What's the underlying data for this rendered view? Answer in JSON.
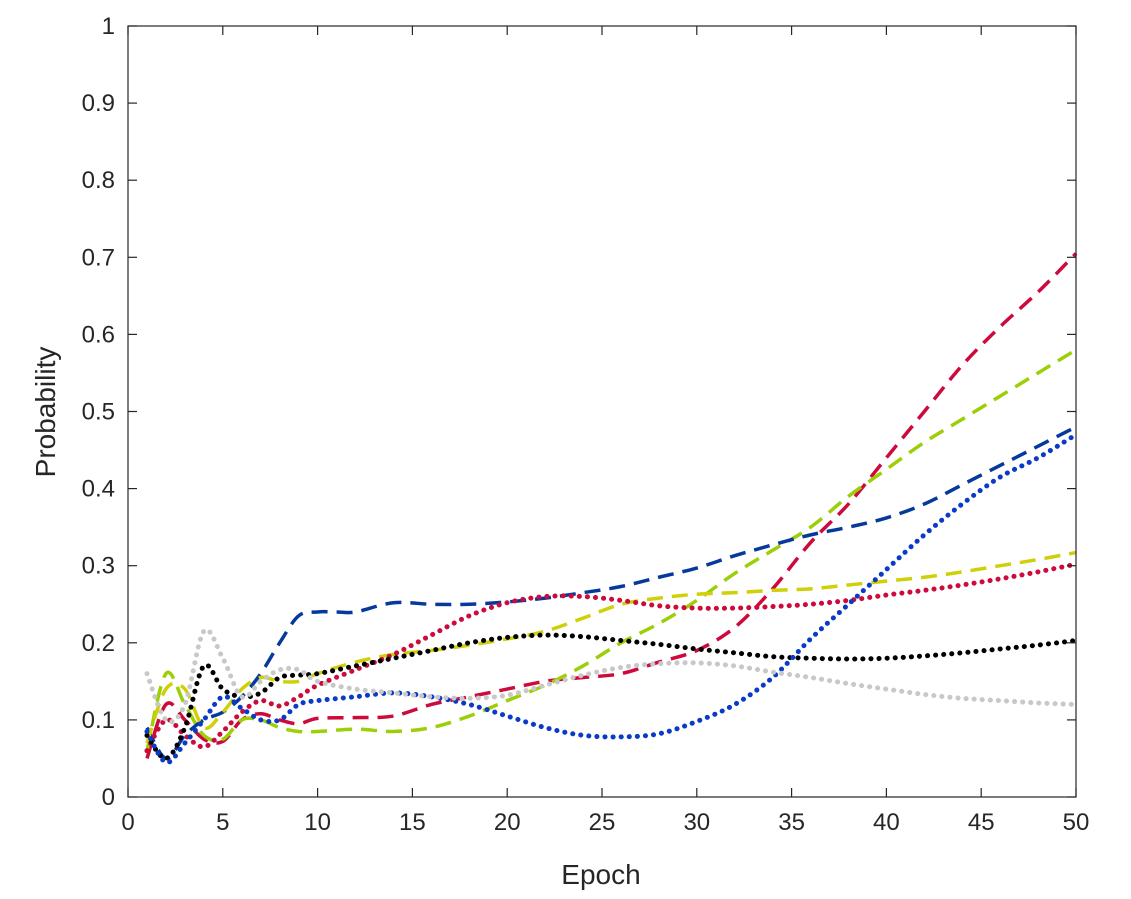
{
  "chart_data": {
    "type": "line",
    "title": "",
    "xlabel": "Epoch",
    "ylabel": "Probability",
    "xlim": [
      0,
      50
    ],
    "ylim": [
      0,
      1
    ],
    "xticks": [
      0,
      5,
      10,
      15,
      20,
      25,
      30,
      35,
      40,
      45,
      50
    ],
    "yticks": [
      0,
      0.1,
      0.2,
      0.3,
      0.4,
      0.5,
      0.6,
      0.7,
      0.8,
      0.9,
      1
    ],
    "ytick_labels": [
      "0",
      "0.1",
      "0.2",
      "0.3",
      "0.4",
      "0.5",
      "0.6",
      "0.7",
      "0.8",
      "0.9",
      "1"
    ],
    "grid": false,
    "legend": "none",
    "series": [
      {
        "name": "crimson-dashed",
        "color": "#cc0a3c",
        "style": "dashed",
        "x": [
          1,
          2,
          3,
          4,
          5,
          6,
          7,
          8,
          9,
          10,
          12,
          14,
          16,
          18,
          20,
          22,
          24,
          26,
          28,
          30,
          32,
          34,
          36,
          38,
          40,
          42,
          44,
          46,
          48,
          50
        ],
        "y": [
          0.05,
          0.12,
          0.1,
          0.075,
          0.072,
          0.1,
          0.108,
          0.1,
          0.095,
          0.102,
          0.103,
          0.105,
          0.12,
          0.13,
          0.14,
          0.15,
          0.155,
          0.16,
          0.175,
          0.19,
          0.22,
          0.27,
          0.33,
          0.38,
          0.44,
          0.5,
          0.56,
          0.61,
          0.655,
          0.705
        ]
      },
      {
        "name": "lime-dashed",
        "color": "#9ccf07",
        "style": "dashed",
        "x": [
          1,
          2,
          3,
          4,
          5,
          6,
          7,
          8,
          9,
          10,
          12,
          14,
          16,
          18,
          20,
          22,
          24,
          26,
          28,
          30,
          32,
          34,
          36,
          38,
          40,
          42,
          44,
          46,
          48,
          50
        ],
        "y": [
          0.06,
          0.16,
          0.12,
          0.08,
          0.075,
          0.1,
          0.1,
          0.09,
          0.085,
          0.085,
          0.088,
          0.085,
          0.09,
          0.105,
          0.125,
          0.145,
          0.17,
          0.2,
          0.225,
          0.255,
          0.29,
          0.32,
          0.35,
          0.39,
          0.425,
          0.46,
          0.49,
          0.52,
          0.55,
          0.58
        ]
      },
      {
        "name": "navy-dashed",
        "color": "#05399c",
        "style": "dashed",
        "x": [
          1,
          2,
          3,
          4,
          5,
          6,
          7,
          8,
          9,
          10,
          11,
          12,
          14,
          16,
          18,
          20,
          22,
          24,
          26,
          28,
          30,
          32,
          34,
          36,
          38,
          40,
          42,
          44,
          46,
          48,
          50
        ],
        "y": [
          0.09,
          0.05,
          0.08,
          0.1,
          0.11,
          0.13,
          0.16,
          0.2,
          0.235,
          0.24,
          0.24,
          0.24,
          0.252,
          0.25,
          0.25,
          0.253,
          0.258,
          0.265,
          0.273,
          0.285,
          0.297,
          0.313,
          0.327,
          0.34,
          0.35,
          0.362,
          0.38,
          0.405,
          0.43,
          0.455,
          0.48
        ]
      },
      {
        "name": "yellow-dashed",
        "color": "#cfd007",
        "style": "dashed",
        "x": [
          1,
          2,
          3,
          4,
          5,
          6,
          7,
          8,
          9,
          10,
          12,
          14,
          16,
          18,
          20,
          22,
          24,
          26,
          28,
          30,
          32,
          34,
          36,
          38,
          40,
          42,
          44,
          46,
          48,
          50
        ],
        "y": [
          0.07,
          0.14,
          0.14,
          0.09,
          0.11,
          0.14,
          0.155,
          0.15,
          0.15,
          0.16,
          0.175,
          0.185,
          0.19,
          0.197,
          0.205,
          0.215,
          0.232,
          0.25,
          0.258,
          0.263,
          0.265,
          0.268,
          0.27,
          0.275,
          0.28,
          0.285,
          0.292,
          0.3,
          0.308,
          0.317
        ]
      },
      {
        "name": "crimson-dotted",
        "color": "#cc0a3c",
        "style": "dotted",
        "x": [
          1,
          2,
          3,
          4,
          5,
          6,
          7,
          8,
          9,
          10,
          12,
          14,
          16,
          18,
          20,
          22,
          24,
          26,
          28,
          30,
          32,
          34,
          36,
          38,
          40,
          42,
          44,
          46,
          48,
          50
        ],
        "y": [
          0.06,
          0.1,
          0.08,
          0.065,
          0.085,
          0.11,
          0.125,
          0.118,
          0.13,
          0.145,
          0.165,
          0.185,
          0.21,
          0.235,
          0.252,
          0.26,
          0.26,
          0.255,
          0.248,
          0.245,
          0.245,
          0.247,
          0.25,
          0.255,
          0.262,
          0.268,
          0.275,
          0.283,
          0.292,
          0.302
        ]
      },
      {
        "name": "black-dotted",
        "color": "#000000",
        "style": "dotted",
        "x": [
          1,
          2,
          3,
          4,
          5,
          6,
          7,
          8,
          9,
          10,
          12,
          14,
          16,
          18,
          20,
          22,
          24,
          26,
          28,
          30,
          32,
          34,
          36,
          38,
          40,
          42,
          44,
          46,
          48,
          50
        ],
        "y": [
          0.08,
          0.05,
          0.09,
          0.17,
          0.14,
          0.13,
          0.135,
          0.155,
          0.158,
          0.16,
          0.17,
          0.18,
          0.19,
          0.2,
          0.207,
          0.21,
          0.208,
          0.203,
          0.198,
          0.192,
          0.187,
          0.182,
          0.18,
          0.179,
          0.18,
          0.183,
          0.187,
          0.192,
          0.197,
          0.203
        ]
      },
      {
        "name": "blue-dotted",
        "color": "#0a3ac8",
        "style": "dotted",
        "x": [
          1,
          2,
          3,
          4,
          5,
          6,
          7,
          8,
          9,
          10,
          12,
          14,
          16,
          18,
          20,
          22,
          24,
          26,
          28,
          30,
          32,
          34,
          36,
          38,
          40,
          42,
          44,
          46,
          48,
          50
        ],
        "y": [
          0.085,
          0.045,
          0.07,
          0.1,
          0.13,
          0.115,
          0.1,
          0.1,
          0.12,
          0.125,
          0.13,
          0.135,
          0.13,
          0.12,
          0.105,
          0.09,
          0.08,
          0.078,
          0.082,
          0.098,
          0.12,
          0.155,
          0.205,
          0.25,
          0.295,
          0.34,
          0.38,
          0.415,
          0.44,
          0.47
        ]
      },
      {
        "name": "gray-dotted",
        "color": "#c8c8c8",
        "style": "dotted",
        "x": [
          1,
          2,
          3,
          4,
          5,
          6,
          7,
          8,
          9,
          10,
          12,
          14,
          16,
          18,
          20,
          22,
          24,
          26,
          28,
          30,
          32,
          34,
          36,
          38,
          40,
          42,
          44,
          46,
          48,
          50
        ],
        "y": [
          0.16,
          0.1,
          0.12,
          0.215,
          0.18,
          0.13,
          0.15,
          0.165,
          0.165,
          0.15,
          0.14,
          0.135,
          0.13,
          0.128,
          0.132,
          0.145,
          0.158,
          0.168,
          0.173,
          0.174,
          0.17,
          0.162,
          0.155,
          0.147,
          0.14,
          0.133,
          0.128,
          0.125,
          0.122,
          0.12
        ]
      }
    ]
  }
}
